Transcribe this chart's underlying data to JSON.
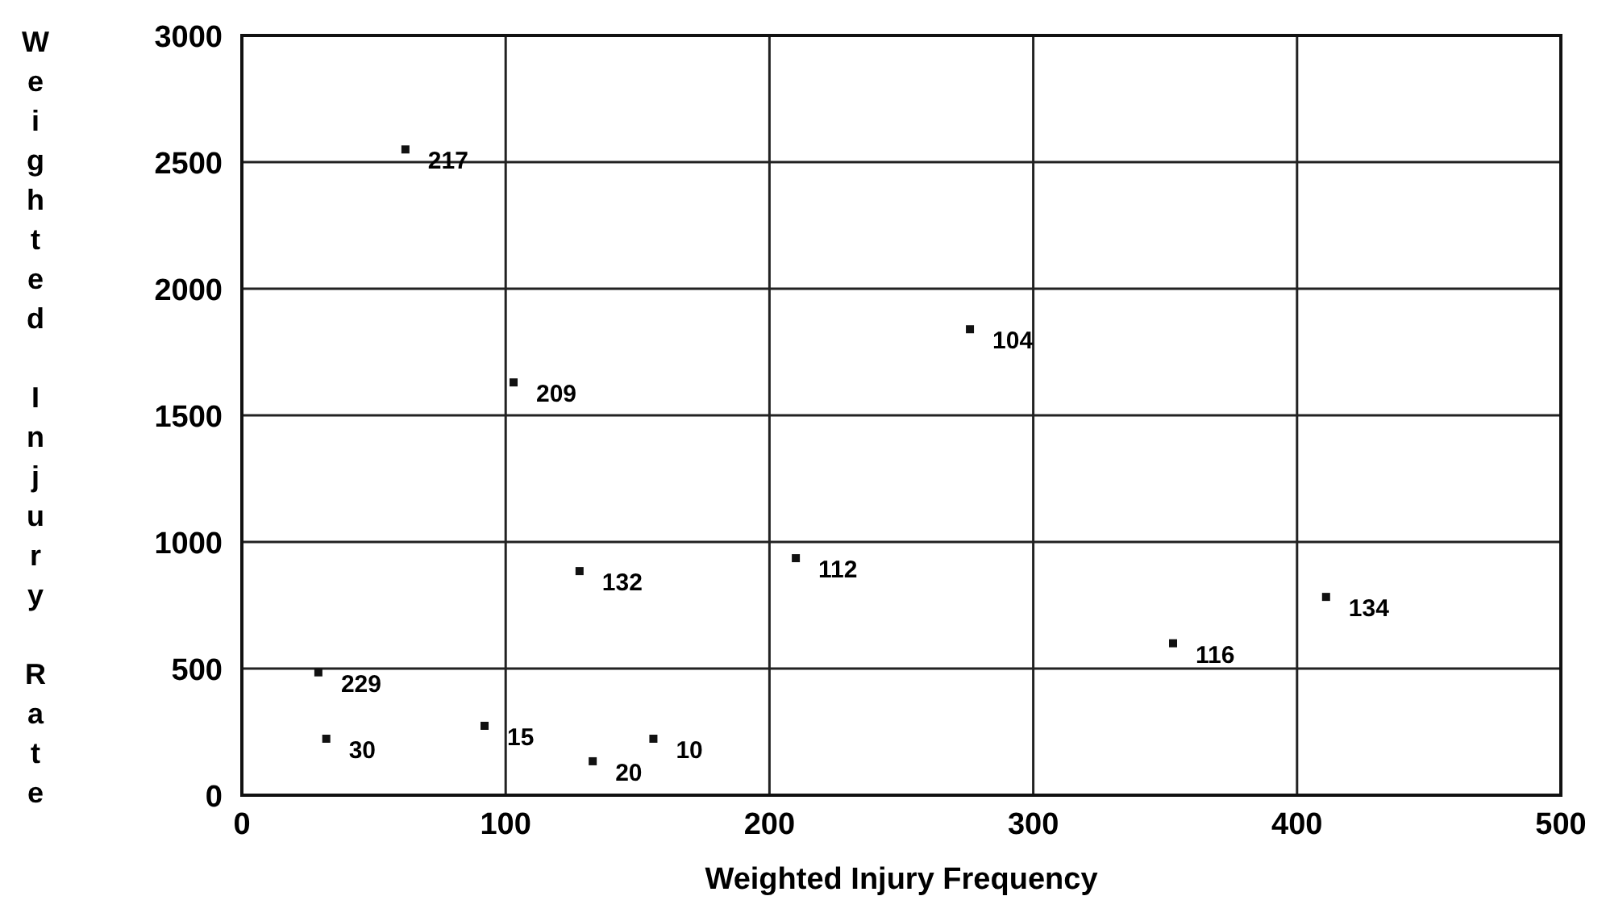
{
  "chart_data": {
    "type": "scatter",
    "xlabel": "Weighted Injury Frequency",
    "ylabel": "Weighted Injury Rate",
    "x": [
      62,
      276,
      103,
      128,
      210,
      411,
      353,
      29,
      32,
      92,
      133,
      156
    ],
    "values": [
      2550,
      1840,
      1630,
      885,
      936,
      783,
      600,
      485,
      223,
      274,
      134,
      223
    ],
    "color": "#111111",
    "marker": "square",
    "xlim": [
      0,
      500
    ],
    "xticks": [
      0,
      100,
      200,
      300,
      400,
      500
    ],
    "ylim": [
      0,
      3000
    ],
    "yticks": [
      0,
      500,
      1000,
      1500,
      2000,
      2500,
      3000
    ],
    "grid": true,
    "annotations": [
      {
        "text": "217",
        "x": 62,
        "y": 2550
      },
      {
        "text": "104",
        "x": 276,
        "y": 1840
      },
      {
        "text": "209",
        "x": 103,
        "y": 1630
      },
      {
        "text": "132",
        "x": 128,
        "y": 885
      },
      {
        "text": "112",
        "x": 210,
        "y": 936
      },
      {
        "text": "134",
        "x": 411,
        "y": 783
      },
      {
        "text": "116",
        "x": 353,
        "y": 600
      },
      {
        "text": "229",
        "x": 29,
        "y": 485
      },
      {
        "text": "30",
        "x": 32,
        "y": 223
      },
      {
        "text": "15",
        "x": 92,
        "y": 274
      },
      {
        "text": "20",
        "x": 133,
        "y": 134
      },
      {
        "text": "10",
        "x": 156,
        "y": 223
      }
    ]
  }
}
